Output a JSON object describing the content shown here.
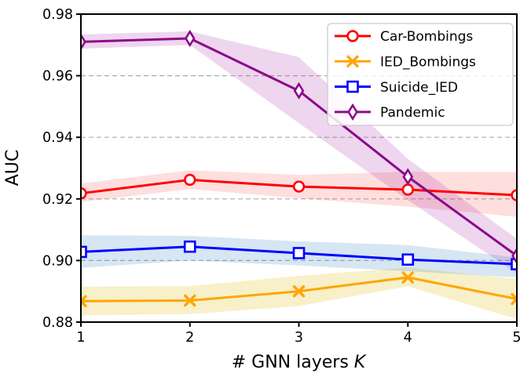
{
  "figure": {
    "xlabel_prefix": "# GNN layers",
    "xlabel_variable": "K"
  },
  "chart_data": {
    "type": "line",
    "title": "",
    "xlabel": "# GNN layers K",
    "ylabel": "AUC",
    "x": [
      1,
      2,
      3,
      4,
      5
    ],
    "xlim": [
      1,
      5
    ],
    "ylim": [
      0.88,
      0.98
    ],
    "xticks": [
      "1",
      "2",
      "3",
      "4",
      "5"
    ],
    "yticks": [
      "0.88",
      "0.90",
      "0.92",
      "0.94",
      "0.96",
      "0.98"
    ],
    "grid": {
      "dashed_y": [
        0.9,
        0.92,
        0.94,
        0.96
      ],
      "color": "#aaaaaa"
    },
    "legend": {
      "position": "upper right"
    },
    "series": [
      {
        "name": "Car-Bombings",
        "color": "#ff0000",
        "marker": "circle",
        "values": [
          0.9218,
          0.9262,
          0.924,
          0.923,
          0.9212
        ],
        "band_low": [
          0.919,
          0.9232,
          0.9202,
          0.9175,
          0.9142
        ],
        "band_high": [
          0.925,
          0.9293,
          0.9278,
          0.9288,
          0.9287
        ],
        "band_color": "rgba(255,0,0,0.13)"
      },
      {
        "name": "IED_Bombings",
        "color": "#ffa500",
        "marker": "x",
        "values": [
          0.8868,
          0.887,
          0.89,
          0.8945,
          0.8875
        ],
        "band_low": [
          0.8822,
          0.8826,
          0.8852,
          0.8916,
          0.881
        ],
        "band_high": [
          0.8915,
          0.8917,
          0.895,
          0.8977,
          0.894
        ],
        "band_color": "rgba(230,200,60,0.28)"
      },
      {
        "name": "Suicide_IED",
        "color": "#0000ff",
        "marker": "square",
        "values": [
          0.9028,
          0.9045,
          0.9024,
          0.9003,
          0.8988
        ],
        "band_low": [
          0.8976,
          0.9,
          0.8984,
          0.8965,
          0.8945
        ],
        "band_high": [
          0.9082,
          0.908,
          0.9062,
          0.905,
          0.901
        ],
        "band_color": "rgba(70,140,200,0.22)"
      },
      {
        "name": "Pandemic",
        "color": "#8b0a8b",
        "marker": "thin-diamond",
        "values": [
          0.971,
          0.9721,
          0.9551,
          0.9272,
          0.9015
        ],
        "band_low": [
          0.9688,
          0.97,
          0.9446,
          0.9196,
          0.8958
        ],
        "band_high": [
          0.9734,
          0.9744,
          0.966,
          0.933,
          0.907
        ],
        "band_color": "rgba(170,50,170,0.20)"
      }
    ]
  }
}
